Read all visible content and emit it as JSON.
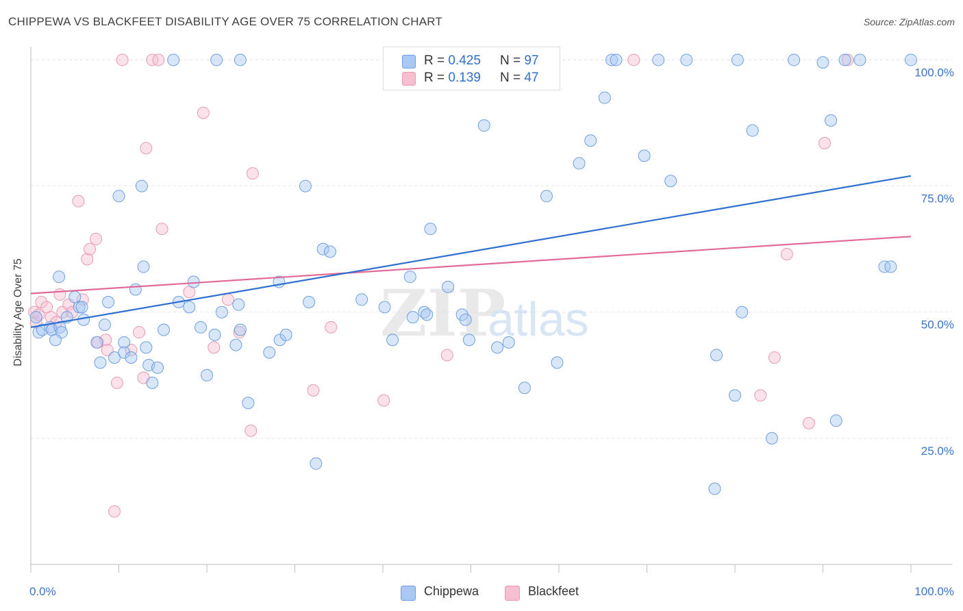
{
  "title": "CHIPPEWA VS BLACKFEET DISABILITY AGE OVER 75 CORRELATION CHART",
  "source": "Source: ZipAtlas.com",
  "watermark": {
    "zip": "ZIP",
    "atlas": "atlas"
  },
  "legend": {
    "rows": [
      {
        "r_label": "R =",
        "r_value": "0.425",
        "n_label": "N =",
        "n_value": "97",
        "color": "#a9c8f3",
        "border": "#6f9fe0"
      },
      {
        "r_label": "R =",
        "r_value": "0.139",
        "n_label": "N =",
        "n_value": "47",
        "color": "#f7bfd0",
        "border": "#e79ab3"
      }
    ]
  },
  "bottom_legend": [
    {
      "label": "Chippewa",
      "color": "#a9c8f3",
      "border": "#6f9fe0"
    },
    {
      "label": "Blackfeet",
      "color": "#f7bfd0",
      "border": "#e79ab3"
    }
  ],
  "colors": {
    "chippewa": "#6f9fe0",
    "chippewa_line": "#2f6fcf",
    "blackfeet": "#e79ab3",
    "blackfeet_line": "#e26a98"
  },
  "chart_data": {
    "type": "scatter",
    "title": "CHIPPEWA VS BLACKFEET DISABILITY AGE OVER 75 CORRELATION CHART",
    "xlabel": "",
    "ylabel": "Disability Age Over 75",
    "xlim": [
      0,
      100
    ],
    "ylim": [
      0,
      100
    ],
    "x_tick_labels": [
      "0.0%",
      "100.0%"
    ],
    "y_tick_labels": [
      {
        "value": 100,
        "label": "100.0%"
      },
      {
        "value": 75,
        "label": "75.0%"
      },
      {
        "value": 50,
        "label": "50.0%"
      },
      {
        "value": 25,
        "label": "25.0%"
      }
    ],
    "grid": true,
    "legend_position": "top-center",
    "series": [
      {
        "name": "Chippewa",
        "r": 0.425,
        "n": 97,
        "trend": {
          "x": [
            0,
            100
          ],
          "y": [
            47.0,
            77.0
          ]
        },
        "points": [
          [
            0.6,
            49
          ],
          [
            0.9,
            46
          ],
          [
            1.3,
            46.5
          ],
          [
            2.2,
            47
          ],
          [
            2.4,
            46.5
          ],
          [
            3.3,
            47
          ],
          [
            3.5,
            46
          ],
          [
            2.8,
            44.5
          ],
          [
            3.2,
            57
          ],
          [
            4.1,
            49
          ],
          [
            5.0,
            53
          ],
          [
            5.5,
            51
          ],
          [
            5.8,
            51
          ],
          [
            6.0,
            48.5
          ],
          [
            7.5,
            44
          ],
          [
            7.9,
            40
          ],
          [
            8.4,
            47.5
          ],
          [
            8.8,
            52
          ],
          [
            9.5,
            41
          ],
          [
            10.0,
            73
          ],
          [
            10.6,
            44
          ],
          [
            10.6,
            42
          ],
          [
            11.4,
            41
          ],
          [
            11.9,
            54.5
          ],
          [
            12.6,
            75
          ],
          [
            12.8,
            59
          ],
          [
            13.1,
            43
          ],
          [
            13.4,
            39.5
          ],
          [
            13.8,
            36
          ],
          [
            14.4,
            39
          ],
          [
            15.1,
            46.5
          ],
          [
            16.2,
            100
          ],
          [
            16.8,
            52
          ],
          [
            18.0,
            51
          ],
          [
            18.5,
            56
          ],
          [
            19.3,
            47
          ],
          [
            20.0,
            37.5
          ],
          [
            20.9,
            45.5
          ],
          [
            21.7,
            50
          ],
          [
            21.1,
            100
          ],
          [
            23.3,
            43.5
          ],
          [
            23.8,
            46.5
          ],
          [
            23.8,
            100
          ],
          [
            24.7,
            32
          ],
          [
            23.6,
            51.5
          ],
          [
            27.1,
            42
          ],
          [
            28.2,
            56
          ],
          [
            28.3,
            44.5
          ],
          [
            29.0,
            45.5
          ],
          [
            31.2,
            75
          ],
          [
            31.6,
            52
          ],
          [
            32.4,
            20
          ],
          [
            33.2,
            62.5
          ],
          [
            34.0,
            62
          ],
          [
            37.6,
            52.5
          ],
          [
            41.1,
            44.5
          ],
          [
            40.2,
            51
          ],
          [
            43.1,
            57
          ],
          [
            43.4,
            49
          ],
          [
            44.7,
            50
          ],
          [
            45.0,
            49.5
          ],
          [
            45.4,
            66.5
          ],
          [
            47.4,
            55
          ],
          [
            49.0,
            49.5
          ],
          [
            49.4,
            48.5
          ],
          [
            49.8,
            44.5
          ],
          [
            51.5,
            87
          ],
          [
            53.0,
            43
          ],
          [
            54.3,
            44
          ],
          [
            56.1,
            35
          ],
          [
            58.6,
            73
          ],
          [
            59.8,
            40
          ],
          [
            62.3,
            79.5
          ],
          [
            63.6,
            84
          ],
          [
            65.2,
            92.5
          ],
          [
            66.0,
            100
          ],
          [
            66.5,
            100
          ],
          [
            69.7,
            81
          ],
          [
            71.3,
            100
          ],
          [
            72.7,
            76
          ],
          [
            74.5,
            100
          ],
          [
            77.7,
            15
          ],
          [
            77.9,
            41.5
          ],
          [
            80.0,
            33.5
          ],
          [
            80.3,
            100
          ],
          [
            80.8,
            50
          ],
          [
            82.0,
            86
          ],
          [
            84.2,
            25
          ],
          [
            86.7,
            100
          ],
          [
            90.0,
            99.5
          ],
          [
            90.9,
            88
          ],
          [
            91.5,
            28.5
          ],
          [
            92.5,
            100
          ],
          [
            94.2,
            100
          ],
          [
            97.0,
            59
          ],
          [
            97.7,
            59
          ],
          [
            100.0,
            100
          ]
        ]
      },
      {
        "name": "Blackfeet",
        "r": 0.139,
        "n": 47,
        "trend": {
          "x": [
            0,
            100
          ],
          "y": [
            53.7,
            65.0
          ]
        },
        "points": [
          [
            0.4,
            50
          ],
          [
            0.6,
            48
          ],
          [
            0.9,
            49.5
          ],
          [
            1.2,
            52
          ],
          [
            1.8,
            51
          ],
          [
            2.3,
            49
          ],
          [
            2.9,
            48
          ],
          [
            3.3,
            53.5
          ],
          [
            3.6,
            50
          ],
          [
            4.3,
            51.5
          ],
          [
            4.7,
            50
          ],
          [
            5.4,
            72
          ],
          [
            5.9,
            52.5
          ],
          [
            6.4,
            60.5
          ],
          [
            6.7,
            62.5
          ],
          [
            7.4,
            64.5
          ],
          [
            7.6,
            44
          ],
          [
            8.5,
            44.5
          ],
          [
            8.7,
            42.5
          ],
          [
            9.5,
            10.5
          ],
          [
            9.8,
            36
          ],
          [
            10.4,
            100
          ],
          [
            11.4,
            42.5
          ],
          [
            12.3,
            46
          ],
          [
            12.8,
            37
          ],
          [
            13.1,
            82.5
          ],
          [
            13.8,
            100
          ],
          [
            14.5,
            100
          ],
          [
            14.9,
            66.5
          ],
          [
            18.0,
            54
          ],
          [
            19.6,
            89.5
          ],
          [
            20.8,
            43
          ],
          [
            22.4,
            52.5
          ],
          [
            23.7,
            46
          ],
          [
            25.0,
            26.5
          ],
          [
            25.2,
            77.5
          ],
          [
            32.1,
            34.5
          ],
          [
            34.1,
            47
          ],
          [
            40.1,
            32.5
          ],
          [
            47.3,
            41.5
          ],
          [
            68.5,
            100
          ],
          [
            82.9,
            33.5
          ],
          [
            84.5,
            41
          ],
          [
            85.9,
            61.5
          ],
          [
            88.4,
            28
          ],
          [
            90.2,
            83.5
          ],
          [
            92.8,
            100
          ]
        ]
      }
    ]
  }
}
